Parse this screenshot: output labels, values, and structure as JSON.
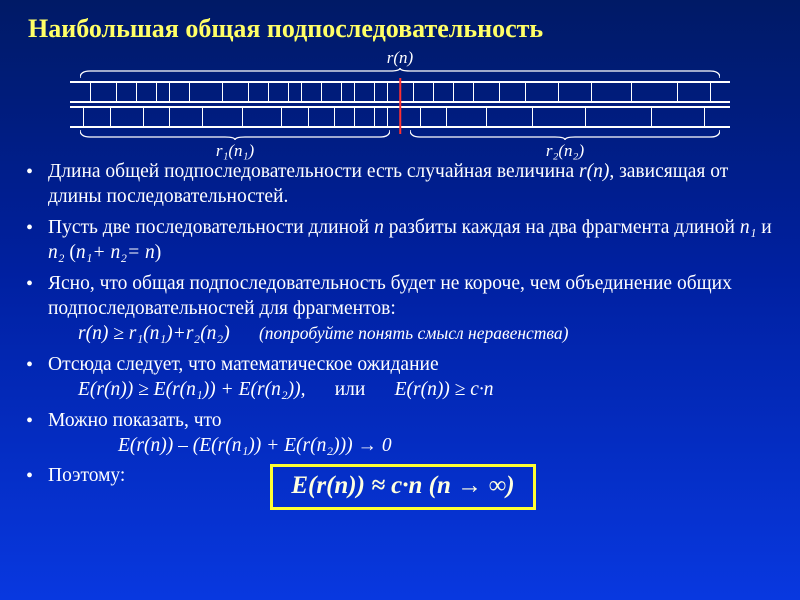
{
  "title": "Наибольшая общая подпоследовательность",
  "diagram": {
    "label_top": "r(n)",
    "label_left": "r₁(n₁)",
    "label_right": "r₂(n₂)",
    "color_line": "#ffffff",
    "color_mid": "#ff3030",
    "ticks_top": [
      3,
      7,
      10,
      13,
      15,
      18,
      23,
      27,
      30,
      33,
      35,
      38,
      41,
      43,
      46,
      48,
      50,
      52,
      55,
      58,
      61,
      65,
      69,
      74,
      79,
      85,
      92,
      97
    ],
    "ticks_bot": [
      2,
      6,
      11,
      15,
      20,
      26,
      32,
      36,
      40,
      43,
      46,
      48,
      50,
      53,
      57,
      63,
      70,
      78,
      88,
      96
    ]
  },
  "bullets": {
    "b1a": "Длина общей подпоследовательности есть случайная величина ",
    "b1b": "r(n)",
    "b1c": ", зависящая от длины последовательностей.",
    "b2a": "Пусть две последовательности длиной ",
    "b2b": "n",
    "b2c": " разбиты каждая на два фрагмента длиной ",
    "b2d": "n₁",
    "b2e": " и ",
    "b2f": "n₂",
    "b2g": " (",
    "b2h": "n₁+ n₂= n",
    "b2i": ")",
    "b3": "Ясно, что общая подпоследовательность будет не короче, чем объединение общих подпоследовательностей для фрагментов:",
    "b3f": "r(n) ≥ r₁(n₁)+r₂(n₂)",
    "b3hint": "(попробуйте понять смысл неравенства)",
    "b4": "Отсюда следует, что математическое ожидание",
    "b4f_a": "E(r(n)) ≥ E(r(n₁)) + E(r(n₂)),",
    "b4f_b": "или",
    "b4f_c": "E(r(n)) ≥ c·n",
    "b5": "Можно показать, что",
    "b5f": "E(r(n)) – (E(r(n₁)) + E(r(n₂))) → 0",
    "b6": "Поэтому:",
    "final": "E(r(n)) ≈ c·n (n → ∞)"
  },
  "style": {
    "title_color": "#ffff66",
    "box_border": "#ffff33",
    "text_color": "#ffffff",
    "title_fontsize": 26,
    "body_fontsize": 19.5,
    "final_fontsize": 25
  }
}
